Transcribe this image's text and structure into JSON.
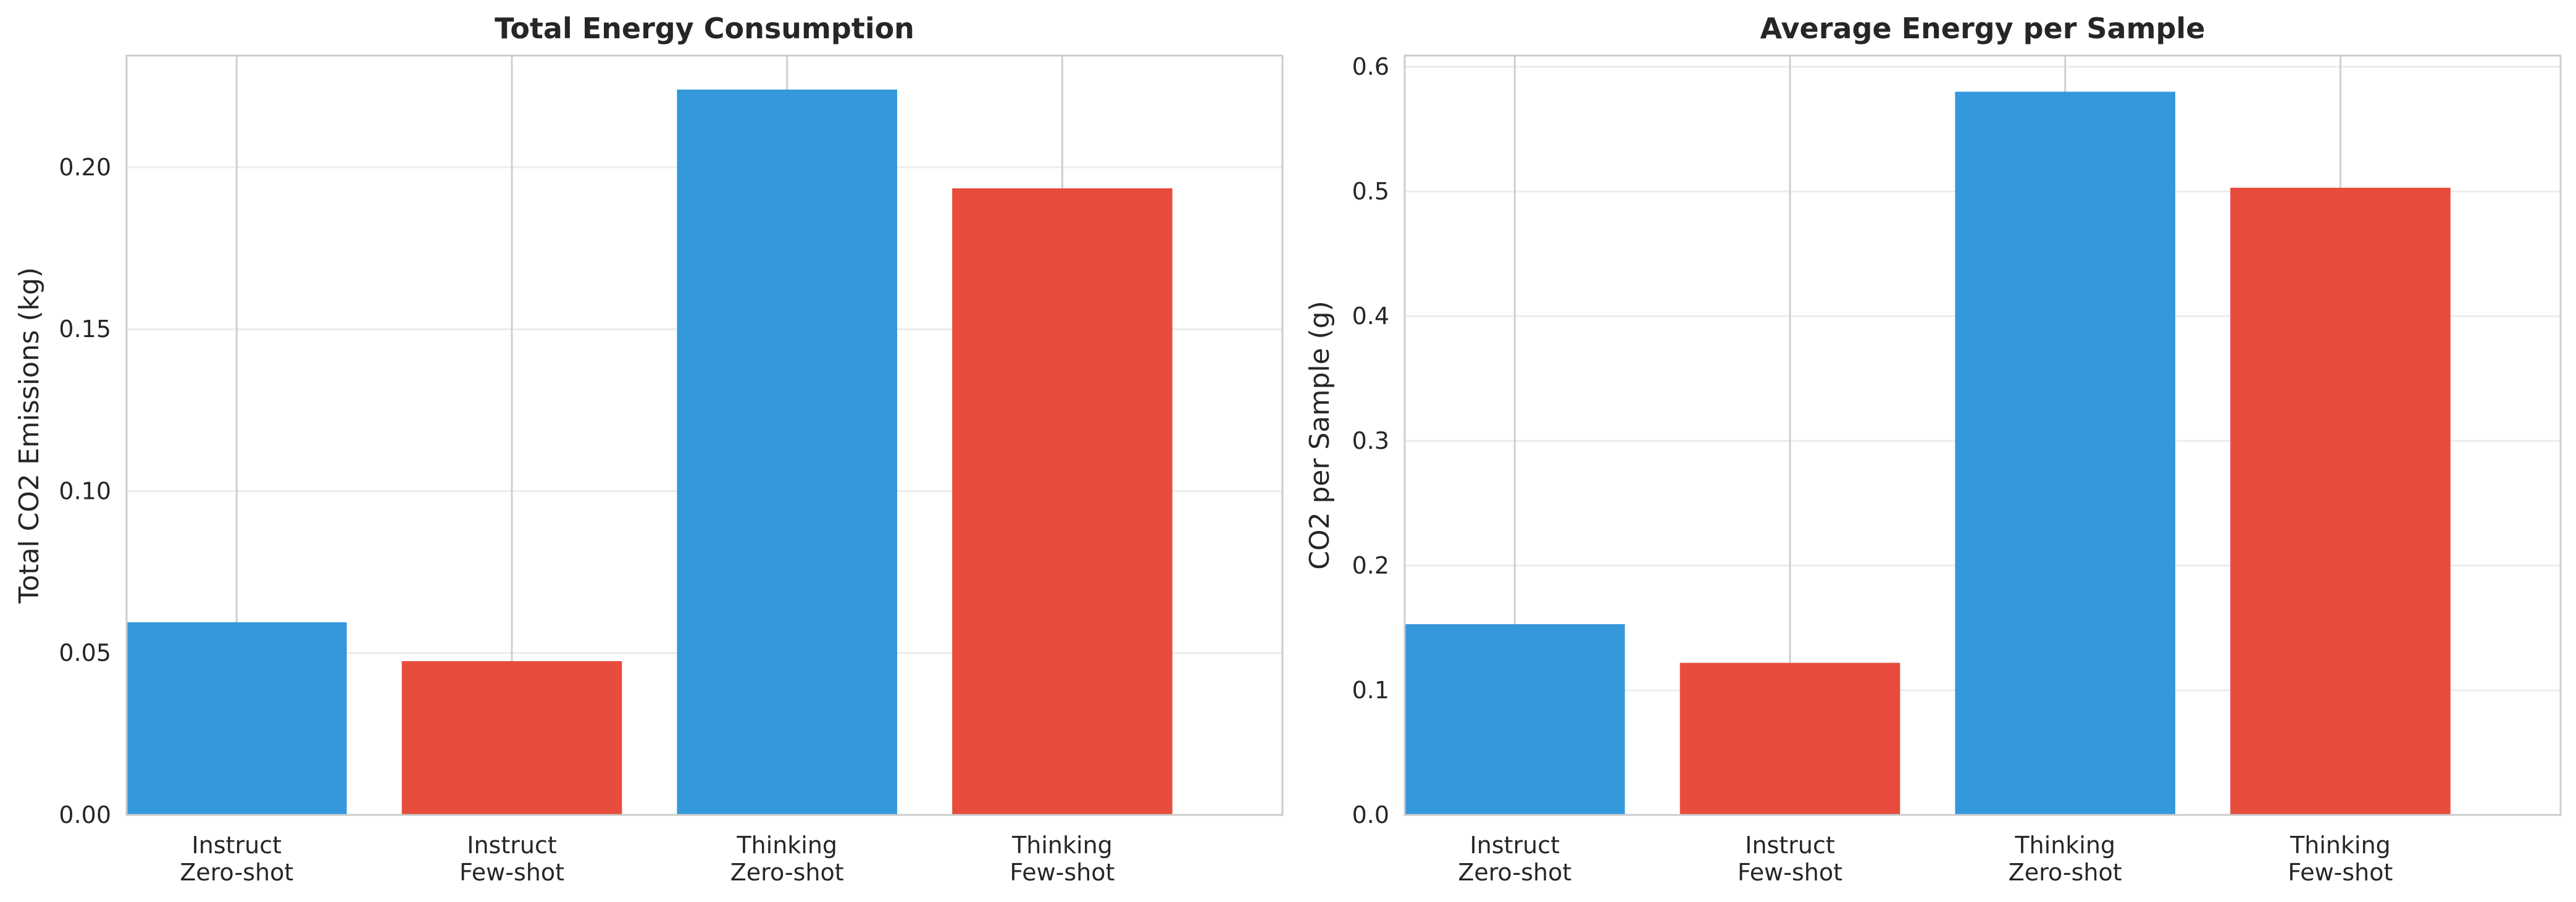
{
  "chart_data": [
    {
      "type": "bar",
      "title": "Total Energy Consumption",
      "xlabel": "",
      "ylabel": "Total CO2 Emissions (kg)",
      "categories": [
        [
          "Instruct",
          "Zero-shot"
        ],
        [
          "Instruct",
          "Few-shot"
        ],
        [
          "Thinking",
          "Zero-shot"
        ],
        [
          "Thinking",
          "Few-shot"
        ]
      ],
      "values": [
        0.0595,
        0.0475,
        0.224,
        0.1935
      ],
      "bar_colors": [
        "#3498db",
        "#e74c3c",
        "#3498db",
        "#e74c3c"
      ],
      "ylim": [
        0,
        0.2345
      ],
      "yticks": [
        0.0,
        0.05,
        0.1,
        0.15,
        0.2
      ],
      "ytick_labels": [
        "0.00",
        "0.05",
        "0.10",
        "0.15",
        "0.20"
      ],
      "grid": true,
      "legend": "none"
    },
    {
      "type": "bar",
      "title": "Average Energy per Sample",
      "xlabel": "",
      "ylabel": "CO2 per Sample (g)",
      "categories": [
        [
          "Instruct",
          "Zero-shot"
        ],
        [
          "Instruct",
          "Few-shot"
        ],
        [
          "Thinking",
          "Zero-shot"
        ],
        [
          "Thinking",
          "Few-shot"
        ]
      ],
      "values": [
        0.153,
        0.122,
        0.58,
        0.503
      ],
      "bar_colors": [
        "#3498db",
        "#e74c3c",
        "#3498db",
        "#e74c3c"
      ],
      "ylim": [
        0,
        0.609
      ],
      "yticks": [
        0.0,
        0.1,
        0.2,
        0.3,
        0.4,
        0.5,
        0.6
      ],
      "ytick_labels": [
        "0.0",
        "0.1",
        "0.2",
        "0.3",
        "0.4",
        "0.5",
        "0.6"
      ],
      "grid": true,
      "legend": "none"
    }
  ]
}
